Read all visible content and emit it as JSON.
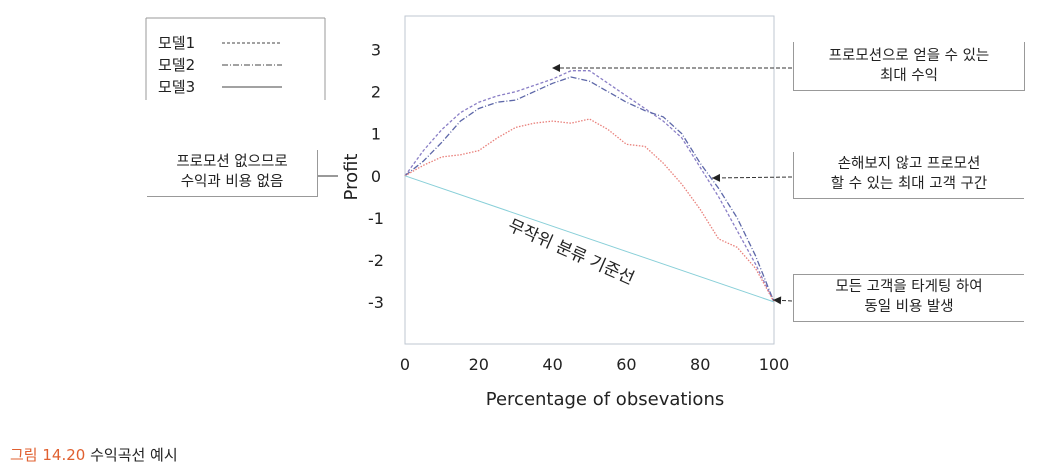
{
  "chart_data": {
    "type": "line",
    "xlabel": "Percentage of obsevations",
    "ylabel": "Profit",
    "xlim": [
      0,
      100
    ],
    "ylim": [
      -4,
      3.8
    ],
    "xticks": [
      0,
      20,
      40,
      60,
      80,
      100
    ],
    "yticks": [
      3,
      2,
      1,
      0,
      -1,
      -2,
      -3
    ],
    "legend_position": "top-left, outside plot",
    "series": [
      {
        "name": "모델1",
        "color": "#8a7fc6",
        "x": [
          0,
          5,
          10,
          15,
          20,
          25,
          30,
          35,
          40,
          45,
          50,
          55,
          60,
          65,
          70,
          75,
          80,
          85,
          90,
          95,
          100
        ],
        "y": [
          0,
          0.6,
          1.1,
          1.5,
          1.75,
          1.9,
          2.0,
          2.15,
          2.3,
          2.5,
          2.5,
          2.2,
          1.9,
          1.6,
          1.3,
          0.9,
          0.2,
          -0.5,
          -1.3,
          -2.1,
          -3.0
        ]
      },
      {
        "name": "모델2",
        "color": "#5d67a8",
        "x": [
          0,
          5,
          10,
          15,
          20,
          25,
          30,
          35,
          40,
          45,
          50,
          55,
          60,
          65,
          70,
          75,
          80,
          85,
          90,
          95,
          100
        ],
        "y": [
          0,
          0.35,
          0.8,
          1.3,
          1.6,
          1.75,
          1.8,
          2.0,
          2.2,
          2.35,
          2.25,
          2.0,
          1.75,
          1.55,
          1.4,
          1.0,
          0.3,
          -0.3,
          -1.0,
          -1.9,
          -3.0
        ]
      },
      {
        "name": "모델3",
        "color": "#e9807b",
        "x": [
          0,
          5,
          10,
          15,
          20,
          25,
          30,
          35,
          40,
          45,
          50,
          55,
          60,
          65,
          70,
          75,
          80,
          85,
          90,
          95,
          100
        ],
        "y": [
          0,
          0.25,
          0.45,
          0.5,
          0.6,
          0.9,
          1.15,
          1.25,
          1.3,
          1.25,
          1.35,
          1.1,
          0.75,
          0.7,
          0.3,
          -0.2,
          -0.8,
          -1.5,
          -1.7,
          -2.2,
          -3.0
        ]
      },
      {
        "color": "#88cfd8",
        "x": [
          0,
          100
        ],
        "y": [
          0,
          -3
        ]
      }
    ],
    "annotations": {
      "max_profit": "프로모션으로 얻을 수 있는\n최대 수익",
      "no_promo": "프로모션 없으므로\n수익과 비용 없음",
      "breakeven": "손해보지 않고 프로모션\n할 수 있는 최대 고객 구간",
      "all_target": "모든 고객을 타게팅 하여\n동일 비용 발생",
      "random_line": "무작위 분류 기준선"
    }
  },
  "caption": {
    "number": "그림 14.20",
    "text": "수익곡선 예시"
  }
}
